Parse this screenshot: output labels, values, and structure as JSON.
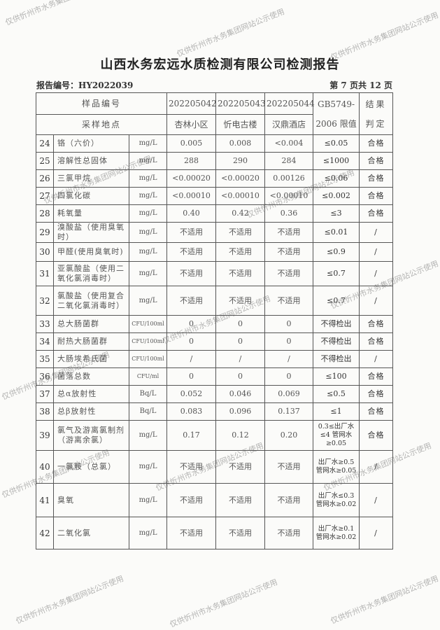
{
  "title": "山西水务宏远水质检测有限公司检测报告",
  "report_no": "报告编号：HY2022039",
  "page_info": "第 7 页共 12 页",
  "watermark": "仅供忻州市水务集团网站公示使用",
  "header": {
    "sample_no_label": "样品编号",
    "location_label": "采样地点",
    "sample_nos": [
      "202205042",
      "202205043",
      "202205044"
    ],
    "locations": [
      "杏林小区",
      "忻电古楼",
      "汉鼎酒店"
    ],
    "limit_label_1": "GB5749-",
    "limit_label_2": "2006 限值",
    "result_label_1": "结果",
    "result_label_2": "判定"
  },
  "rows": [
    {
      "no": "24",
      "name": "铬（六价）",
      "unit": "mg/L",
      "v": [
        "0.005",
        "0.008",
        "<0.004"
      ],
      "limit": "≤0.05",
      "result": "合格"
    },
    {
      "no": "25",
      "name": "溶解性总固体",
      "unit": "mg/L",
      "v": [
        "288",
        "290",
        "284"
      ],
      "limit": "≤1000",
      "result": "合格"
    },
    {
      "no": "26",
      "name": "三氯甲烷",
      "unit": "mg/L",
      "v": [
        "<0.00020",
        "<0.00020",
        "0.00126"
      ],
      "limit": "≤0.06",
      "result": "合格"
    },
    {
      "no": "27",
      "name": "四氯化碳",
      "unit": "mg/L",
      "v": [
        "<0.00010",
        "<0.00010",
        "<0.00010"
      ],
      "limit": "≤0.002",
      "result": "合格"
    },
    {
      "no": "28",
      "name": "耗氧量",
      "unit": "mg/L",
      "v": [
        "0.40",
        "0.42",
        "0.36"
      ],
      "limit": "≤3",
      "result": "合格"
    },
    {
      "no": "29",
      "name": "溴酸盐（使用臭氧时）",
      "unit": "mg/L",
      "v": [
        "不适用",
        "不适用",
        "不适用"
      ],
      "limit": "≤0.01",
      "result": "/"
    },
    {
      "no": "30",
      "name": "甲醛(使用臭氧时)",
      "unit": "mg/L",
      "v": [
        "不适用",
        "不适用",
        "不适用"
      ],
      "limit": "≤0.9",
      "result": "/"
    },
    {
      "no": "31",
      "name": "亚氯酸盐（使用二氧化氯消毒时）",
      "unit": "mg/L",
      "v": [
        "不适用",
        "不适用",
        "不适用"
      ],
      "limit": "≤0.7",
      "result": "/"
    },
    {
      "no": "32",
      "name": "氯酸盐（使用复合二氧化氯消毒时）",
      "unit": "mg/L",
      "v": [
        "不适用",
        "不适用",
        "不适用"
      ],
      "limit": "≤0.7",
      "result": "/"
    },
    {
      "no": "33",
      "name": "总大肠菌群",
      "unit": "CFU/100ml",
      "v": [
        "0",
        "0",
        "0"
      ],
      "limit": "不得检出",
      "result": "合格"
    },
    {
      "no": "34",
      "name": "耐热大肠菌群",
      "unit": "CFU/100ml",
      "v": [
        "0",
        "0",
        "0"
      ],
      "limit": "不得检出",
      "result": "合格"
    },
    {
      "no": "35",
      "name": "大肠埃希氏菌",
      "unit": "CFU/100ml",
      "v": [
        "/",
        "/",
        "/"
      ],
      "limit": "不得检出",
      "result": "/"
    },
    {
      "no": "36",
      "name": "菌落总数",
      "unit": "CFU/ml",
      "v": [
        "0",
        "0",
        "0"
      ],
      "limit": "≤100",
      "result": "合格"
    },
    {
      "no": "37",
      "name": "总α放射性",
      "unit": "Bq/L",
      "v": [
        "0.052",
        "0.046",
        "0.069"
      ],
      "limit": "≤0.5",
      "result": "合格"
    },
    {
      "no": "38",
      "name": "总β放射性",
      "unit": "Bq/L",
      "v": [
        "0.083",
        "0.096",
        "0.137"
      ],
      "limit": "≤1",
      "result": "合格"
    },
    {
      "no": "39",
      "name": "氯气及游离氯制剂（游离余氯）",
      "unit": "mg/L",
      "v": [
        "0.17",
        "0.12",
        "0.20"
      ],
      "limit": "0.3≤出厂水≤4 管网水≥0.05",
      "result": "合格"
    },
    {
      "no": "40",
      "name": "一氯胺（总氯）",
      "unit": "mg/L",
      "v": [
        "不适用",
        "不适用",
        "不适用"
      ],
      "limit": "出厂水≥0.5 管网水≥0.05",
      "result": "/"
    },
    {
      "no": "41",
      "name": "臭氧",
      "unit": "mg/L",
      "v": [
        "不适用",
        "不适用",
        "不适用"
      ],
      "limit": "出厂水≤0.3 管网水≥0.02",
      "result": "/"
    },
    {
      "no": "42",
      "name": "二氧化氯",
      "unit": "mg/L",
      "v": [
        "不适用",
        "不适用",
        "不适用"
      ],
      "limit": "出厂水≥0.1 管网水≥0.02",
      "result": "/"
    }
  ]
}
